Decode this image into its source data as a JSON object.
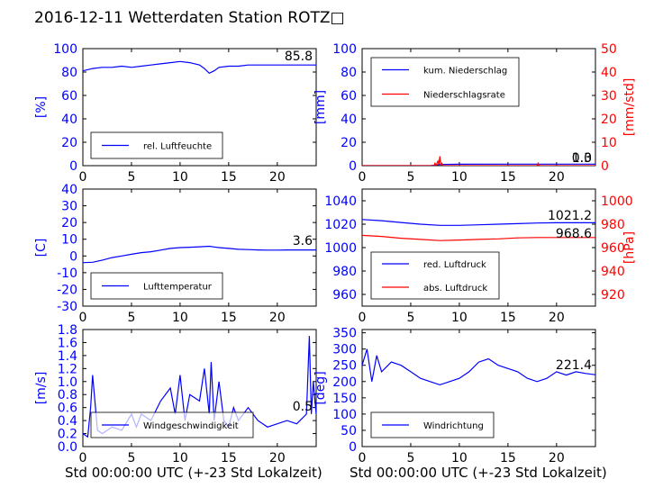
{
  "figure": {
    "title": "2016-12-11 Wetterdaten Station ROTZ□",
    "xlabel": "Std 00:00:00 UTC (+-23 Std Lokalzeit)"
  },
  "chart_data": [
    {
      "id": "humidity",
      "type": "line",
      "ylabel": "[%]",
      "xlim": [
        0,
        24
      ],
      "ylim": [
        0,
        100
      ],
      "xticks": [
        0,
        5,
        10,
        15,
        20
      ],
      "yticks": [
        0,
        20,
        40,
        60,
        80,
        100
      ],
      "legend": "lower-left",
      "latest_value": "85.8",
      "series": [
        {
          "name": "rel. Luftfeuchte",
          "color": "#0000ff",
          "x": [
            0,
            1,
            2,
            3,
            4,
            5,
            6,
            7,
            8,
            9,
            10,
            11,
            12,
            12.5,
            13,
            13.5,
            14,
            15,
            16,
            17,
            18,
            19,
            20,
            21,
            22,
            23,
            24
          ],
          "y": [
            81,
            83,
            84,
            84,
            85,
            84,
            85,
            86,
            87,
            88,
            89,
            88,
            86,
            83,
            79,
            81,
            84,
            85,
            85,
            86,
            86,
            86,
            86,
            86,
            86,
            86,
            86
          ]
        }
      ]
    },
    {
      "id": "precipitation",
      "type": "line",
      "ylabel": "[mm]",
      "ylabel2": "[mm/std]",
      "xlim": [
        0,
        24
      ],
      "ylim": [
        0,
        100
      ],
      "ylim2": [
        0,
        50
      ],
      "xticks": [
        0,
        5,
        10,
        15,
        20
      ],
      "yticks": [
        0,
        20,
        40,
        60,
        80,
        100
      ],
      "yticks2": [
        0,
        10,
        20,
        30,
        40,
        50
      ],
      "legend": "top-left",
      "latest_value": "1.3",
      "latest_value_back": "0.0",
      "series": [
        {
          "name": "kum. Niederschlag",
          "color": "#0000ff",
          "axis": "left",
          "x": [
            0,
            7,
            7.5,
            8,
            10,
            15,
            20,
            24
          ],
          "y": [
            0,
            0,
            0.5,
            1,
            1.2,
            1.3,
            1.3,
            1.3
          ]
        },
        {
          "name": "Niederschlagsrate",
          "color": "#ff0000",
          "axis": "right",
          "x": [
            0,
            7.4,
            7.5,
            7.6,
            7.8,
            7.9,
            8.0,
            8.1,
            8.2,
            8.3,
            8.5,
            10,
            18,
            18.1,
            18.2,
            24
          ],
          "y": [
            0,
            0,
            1,
            0,
            2,
            0.5,
            4,
            0,
            1,
            0,
            0,
            0,
            0,
            1,
            0,
            0
          ]
        }
      ]
    },
    {
      "id": "temperature",
      "type": "line",
      "ylabel": "[C]",
      "xlim": [
        0,
        24
      ],
      "ylim": [
        -30,
        40
      ],
      "xticks": [
        0,
        5,
        10,
        15,
        20
      ],
      "yticks": [
        -30,
        -20,
        -10,
        0,
        10,
        20,
        30,
        40
      ],
      "legend": "lower-left",
      "latest_value": "3.6",
      "series": [
        {
          "name": "Lufttemperatur",
          "color": "#0000ff",
          "x": [
            0,
            1,
            2,
            3,
            4,
            5,
            6,
            7,
            8,
            9,
            10,
            11,
            12,
            13,
            13.5,
            14,
            15,
            16,
            17,
            18,
            19,
            20,
            21,
            22,
            23,
            24
          ],
          "y": [
            -4,
            -3.8,
            -2.5,
            -1,
            0,
            1,
            2,
            2.5,
            3.5,
            4.5,
            5,
            5.2,
            5.5,
            5.8,
            5.4,
            5,
            4.5,
            4,
            3.8,
            3.6,
            3.5,
            3.5,
            3.6,
            3.6,
            3.6,
            3.6
          ]
        }
      ]
    },
    {
      "id": "pressure",
      "type": "line",
      "ylabel": "",
      "ylabel2": "[hPa]",
      "xlim": [
        0,
        24
      ],
      "ylim": [
        950,
        1050
      ],
      "ylim2": [
        910,
        1010
      ],
      "xticks": [
        0,
        5,
        10,
        15,
        20
      ],
      "yticks": [
        960,
        980,
        1000,
        1020,
        1040
      ],
      "yticks2": [
        920,
        940,
        960,
        980,
        1000
      ],
      "legend": "lower-left",
      "latest_value": "1021.2",
      "latest_value2": "968.6",
      "series": [
        {
          "name": "red. Luftdruck",
          "color": "#0000ff",
          "axis": "left",
          "x": [
            0,
            2,
            4,
            6,
            8,
            10,
            12,
            14,
            16,
            18,
            20,
            22,
            24
          ],
          "y": [
            1024,
            1023,
            1021.5,
            1020,
            1019,
            1019,
            1019.5,
            1020,
            1020.5,
            1021,
            1021.2,
            1021.2,
            1021.2
          ]
        },
        {
          "name": "abs. Luftdruck",
          "color": "#ff0000",
          "axis": "right",
          "x": [
            0,
            2,
            4,
            6,
            8,
            10,
            12,
            14,
            16,
            18,
            20,
            22,
            24
          ],
          "y": [
            970.5,
            969.5,
            968,
            967,
            966,
            966.5,
            967,
            967.5,
            968.3,
            968.6,
            968.6,
            968.6,
            968.6
          ]
        }
      ]
    },
    {
      "id": "wind-speed",
      "type": "line",
      "ylabel": "[m/s]",
      "xlim": [
        0,
        24
      ],
      "ylim": [
        0,
        1.8
      ],
      "xticks": [
        0,
        5,
        10,
        15,
        20
      ],
      "yticks": [
        0.0,
        0.2,
        0.4,
        0.6,
        0.8,
        1.0,
        1.2,
        1.4,
        1.6,
        1.8
      ],
      "legend": "lower-left",
      "latest_value": "0.5",
      "series": [
        {
          "name": "Windgeschwindigkeit",
          "color": "#0000ff",
          "x": [
            0,
            0.5,
            0.8,
            1,
            1.5,
            2,
            3,
            4,
            5,
            5.5,
            6,
            7,
            8,
            9,
            9.5,
            10,
            10.5,
            11,
            12,
            12.5,
            13,
            13.2,
            13.5,
            14,
            14.5,
            15,
            15.5,
            16,
            17,
            18,
            19,
            20,
            21,
            22,
            23,
            23.3,
            23.5,
            23.7,
            24
          ],
          "y": [
            0.2,
            0.15,
            0.6,
            1.1,
            0.25,
            0.2,
            0.3,
            0.25,
            0.5,
            0.3,
            0.5,
            0.4,
            0.7,
            0.9,
            0.5,
            1.1,
            0.4,
            0.8,
            0.7,
            1.2,
            0.5,
            1.3,
            0.4,
            1.0,
            0.4,
            0.3,
            0.6,
            0.4,
            0.6,
            0.4,
            0.3,
            0.35,
            0.4,
            0.35,
            0.5,
            1.7,
            0.5,
            1.0,
            0.5
          ]
        }
      ]
    },
    {
      "id": "wind-direction",
      "type": "line",
      "ylabel": "[deg]",
      "xlim": [
        0,
        24
      ],
      "ylim": [
        0,
        360
      ],
      "xticks": [
        0,
        5,
        10,
        15,
        20
      ],
      "yticks": [
        0,
        50,
        100,
        150,
        200,
        250,
        300,
        350
      ],
      "legend": "lower-left",
      "latest_value": "221.4",
      "series": [
        {
          "name": "Windrichtung",
          "color": "#0000ff",
          "x": [
            0,
            0.5,
            1,
            1.5,
            2,
            3,
            4,
            5,
            6,
            7,
            8,
            9,
            10,
            11,
            12,
            13,
            14,
            15,
            16,
            17,
            18,
            19,
            20,
            21,
            22,
            23,
            24
          ],
          "y": [
            250,
            300,
            200,
            280,
            230,
            260,
            250,
            230,
            210,
            200,
            190,
            200,
            210,
            230,
            260,
            270,
            250,
            240,
            230,
            210,
            200,
            210,
            230,
            220,
            230,
            225,
            221
          ]
        }
      ]
    }
  ]
}
